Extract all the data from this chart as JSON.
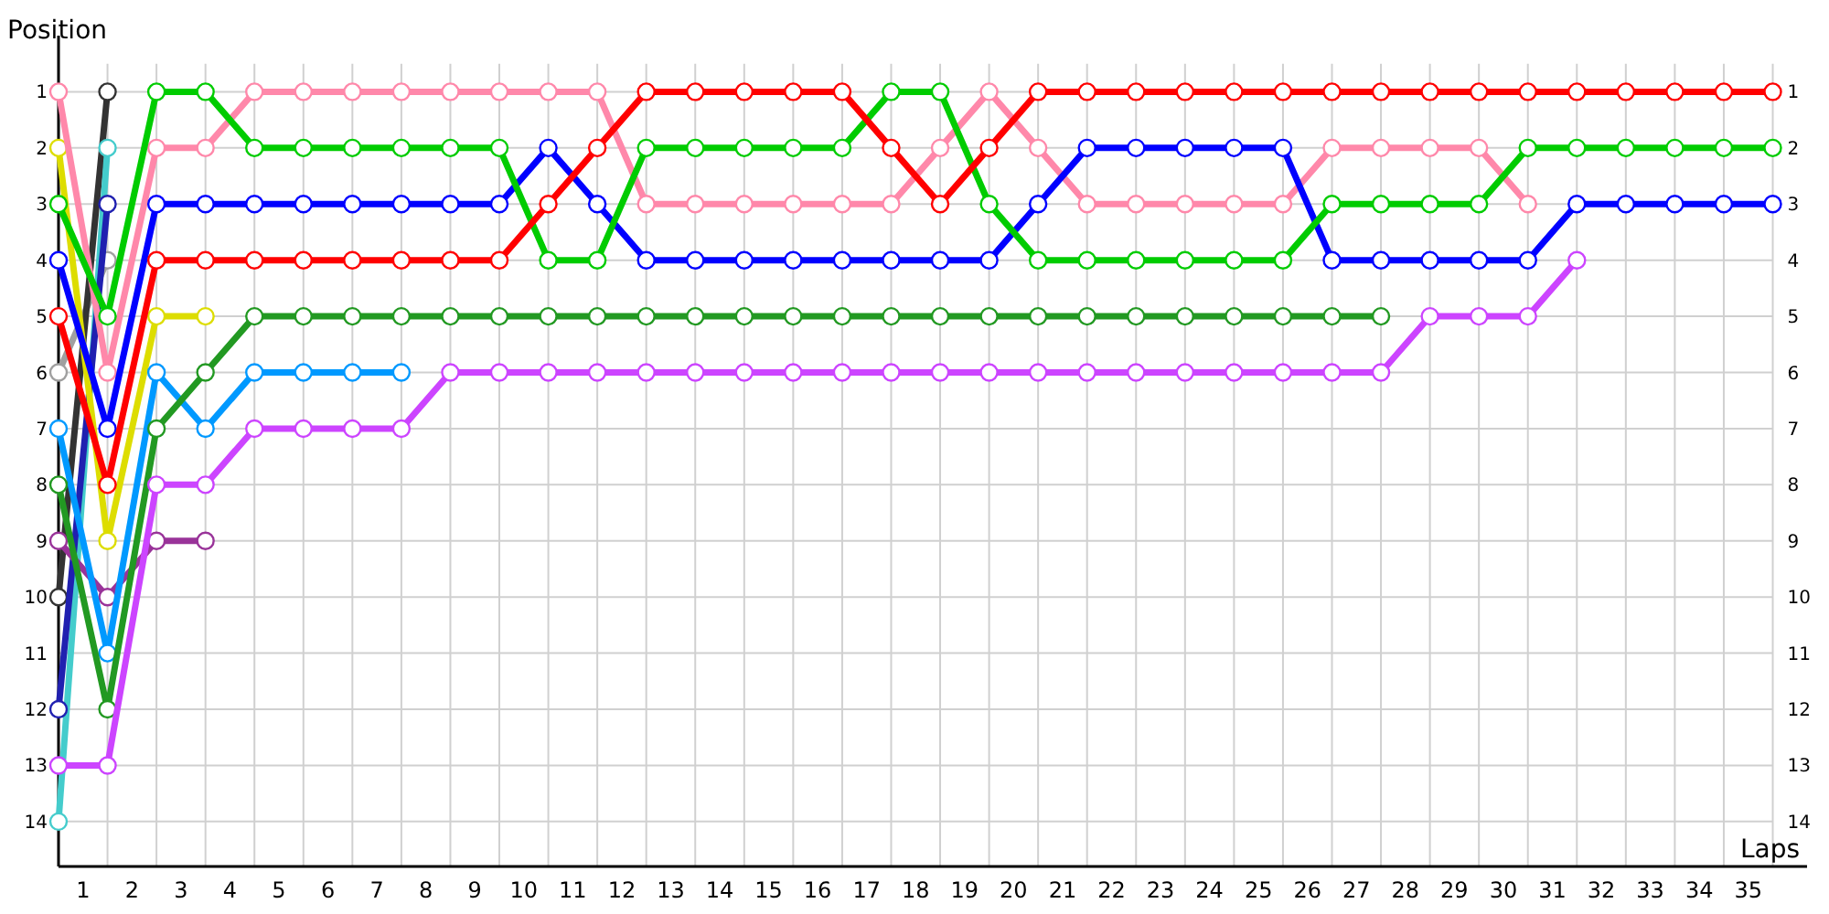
{
  "chart_data": {
    "type": "line",
    "xlabel": "Laps",
    "ylabel": "Position",
    "marker": "circle",
    "grid": true,
    "x": [
      0,
      1,
      2,
      3,
      4,
      5,
      6,
      7,
      8,
      9,
      10,
      11,
      12,
      13,
      14,
      15,
      16,
      17,
      18,
      19,
      20,
      21,
      22,
      23,
      24,
      25,
      26,
      27,
      28,
      29,
      30,
      31,
      32,
      33,
      34,
      35
    ],
    "xlim": [
      0,
      35.7
    ],
    "xticks": [
      {
        "value": 0.5,
        "label": "1"
      },
      {
        "value": 1.5,
        "label": "2"
      },
      {
        "value": 2.5,
        "label": "3"
      },
      {
        "value": 3.5,
        "label": "4"
      },
      {
        "value": 4.5,
        "label": "5"
      },
      {
        "value": 5.5,
        "label": "6"
      },
      {
        "value": 6.5,
        "label": "7"
      },
      {
        "value": 7.5,
        "label": "8"
      },
      {
        "value": 8.5,
        "label": "9"
      },
      {
        "value": 9.5,
        "label": "10"
      },
      {
        "value": 10.5,
        "label": "11"
      },
      {
        "value": 11.5,
        "label": "12"
      },
      {
        "value": 12.5,
        "label": "13"
      },
      {
        "value": 13.5,
        "label": "14"
      },
      {
        "value": 14.5,
        "label": "15"
      },
      {
        "value": 15.5,
        "label": "16"
      },
      {
        "value": 16.5,
        "label": "17"
      },
      {
        "value": 17.5,
        "label": "18"
      },
      {
        "value": 18.5,
        "label": "19"
      },
      {
        "value": 19.5,
        "label": "20"
      },
      {
        "value": 20.5,
        "label": "21"
      },
      {
        "value": 21.5,
        "label": "22"
      },
      {
        "value": 22.5,
        "label": "23"
      },
      {
        "value": 23.5,
        "label": "24"
      },
      {
        "value": 24.5,
        "label": "25"
      },
      {
        "value": 25.5,
        "label": "26"
      },
      {
        "value": 26.5,
        "label": "27"
      },
      {
        "value": 27.5,
        "label": "28"
      },
      {
        "value": 28.5,
        "label": "29"
      },
      {
        "value": 29.5,
        "label": "30"
      },
      {
        "value": 30.5,
        "label": "31"
      },
      {
        "value": 31.5,
        "label": "32"
      },
      {
        "value": 32.5,
        "label": "33"
      },
      {
        "value": 33.5,
        "label": "34"
      },
      {
        "value": 34.5,
        "label": "35"
      },
      {
        "value": 1,
        "label": null
      },
      {
        "value": 2,
        "label": null
      },
      {
        "value": 3,
        "label": null
      },
      {
        "value": 4,
        "label": null
      },
      {
        "value": 5,
        "label": null
      },
      {
        "value": 6,
        "label": null
      },
      {
        "value": 7,
        "label": null
      },
      {
        "value": 8,
        "label": null
      },
      {
        "value": 9,
        "label": null
      },
      {
        "value": 10,
        "label": null
      },
      {
        "value": 11,
        "label": null
      },
      {
        "value": 12,
        "label": null
      },
      {
        "value": 13,
        "label": null
      },
      {
        "value": 14,
        "label": null
      },
      {
        "value": 15,
        "label": null
      },
      {
        "value": 16,
        "label": null
      },
      {
        "value": 17,
        "label": null
      },
      {
        "value": 18,
        "label": null
      },
      {
        "value": 19,
        "label": null
      },
      {
        "value": 20,
        "label": null
      },
      {
        "value": 21,
        "label": null
      },
      {
        "value": 22,
        "label": null
      },
      {
        "value": 23,
        "label": null
      },
      {
        "value": 24,
        "label": null
      },
      {
        "value": 25,
        "label": null
      },
      {
        "value": 26,
        "label": null
      },
      {
        "value": 27,
        "label": null
      },
      {
        "value": 28,
        "label": null
      },
      {
        "value": 29,
        "label": null
      },
      {
        "value": 30,
        "label": null
      },
      {
        "value": 31,
        "label": null
      },
      {
        "value": 32,
        "label": null
      },
      {
        "value": 33,
        "label": null
      },
      {
        "value": 34,
        "label": null
      },
      {
        "value": 35,
        "label": null
      }
    ],
    "ylim": [
      14.8,
      0
    ],
    "yticks": [
      1,
      2,
      3,
      4,
      5,
      6,
      7,
      8,
      9,
      10,
      11,
      12,
      13,
      14
    ],
    "y2lim": [
      14.8,
      0
    ],
    "y2ticks": [
      1,
      2,
      3,
      4,
      5,
      6,
      7,
      8,
      9,
      10,
      11,
      12,
      13,
      14
    ],
    "series": [
      {
        "color": "#a0a0a0",
        "x": [
          0,
          1
        ],
        "values": [
          6,
          4
        ]
      },
      {
        "color": "#333333",
        "x": [
          0,
          1
        ],
        "values": [
          10,
          1
        ]
      },
      {
        "color": "#44cccc",
        "x": [
          0,
          1
        ],
        "values": [
          14,
          2
        ]
      },
      {
        "color": "#2020b0",
        "x": [
          0,
          1
        ],
        "values": [
          12,
          3
        ]
      },
      {
        "color": "#993399",
        "x": [
          0,
          1,
          2,
          3
        ],
        "values": [
          9,
          10,
          9,
          9
        ]
      },
      {
        "color": "#dddd00",
        "x": [
          0,
          1,
          2,
          3
        ],
        "values": [
          2,
          9,
          5,
          5
        ]
      },
      {
        "color": "#0099ff",
        "x": [
          0,
          1,
          2,
          3,
          4,
          5,
          6,
          7
        ],
        "values": [
          7,
          11,
          6,
          7,
          6,
          6,
          6,
          6
        ]
      },
      {
        "color": "#229922",
        "x": [
          0,
          1,
          2,
          3,
          4,
          5,
          6,
          7,
          8,
          9,
          10,
          11,
          12,
          13,
          14,
          15,
          16,
          17,
          18,
          19,
          20,
          21,
          22,
          23,
          24,
          25,
          26,
          27
        ],
        "values": [
          8,
          12,
          7,
          6,
          5,
          5,
          5,
          5,
          5,
          5,
          5,
          5,
          5,
          5,
          5,
          5,
          5,
          5,
          5,
          5,
          5,
          5,
          5,
          5,
          5,
          5,
          5,
          5
        ]
      },
      {
        "color": "#cc44ff",
        "x": [
          0,
          1,
          2,
          3,
          4,
          5,
          6,
          7,
          8,
          9,
          10,
          11,
          12,
          13,
          14,
          15,
          16,
          17,
          18,
          19,
          20,
          21,
          22,
          23,
          24,
          25,
          26,
          27,
          28,
          29,
          30,
          31
        ],
        "values": [
          13,
          13,
          8,
          8,
          7,
          7,
          7,
          7,
          6,
          6,
          6,
          6,
          6,
          6,
          6,
          6,
          6,
          6,
          6,
          6,
          6,
          6,
          6,
          6,
          6,
          6,
          6,
          6,
          5,
          5,
          5,
          4
        ]
      },
      {
        "color": "#ff88aa",
        "x": [
          0,
          1,
          2,
          3,
          4,
          5,
          6,
          7,
          8,
          9,
          10,
          11,
          12,
          13,
          14,
          15,
          16,
          17,
          18,
          19,
          20,
          21,
          22,
          23,
          24,
          25,
          26,
          27,
          28,
          29,
          30
        ],
        "values": [
          1,
          6,
          2,
          2,
          1,
          1,
          1,
          1,
          1,
          1,
          1,
          1,
          3,
          3,
          3,
          3,
          3,
          3,
          2,
          1,
          2,
          3,
          3,
          3,
          3,
          3,
          2,
          2,
          2,
          2,
          3
        ]
      },
      {
        "color": "#0000ff",
        "values": [
          4,
          7,
          3,
          3,
          3,
          3,
          3,
          3,
          3,
          3,
          2,
          3,
          4,
          4,
          4,
          4,
          4,
          4,
          4,
          4,
          3,
          2,
          2,
          2,
          2,
          2,
          4,
          4,
          4,
          4,
          4,
          3,
          3,
          3,
          3,
          3
        ]
      },
      {
        "color": "#00cc00",
        "values": [
          3,
          5,
          1,
          1,
          2,
          2,
          2,
          2,
          2,
          2,
          4,
          4,
          2,
          2,
          2,
          2,
          2,
          1,
          1,
          3,
          4,
          4,
          4,
          4,
          4,
          4,
          3,
          3,
          3,
          3,
          2,
          2,
          2,
          2,
          2,
          2
        ]
      },
      {
        "color": "#ff0000",
        "values": [
          5,
          8,
          4,
          4,
          4,
          4,
          4,
          4,
          4,
          4,
          3,
          2,
          1,
          1,
          1,
          1,
          1,
          2,
          3,
          2,
          1,
          1,
          1,
          1,
          1,
          1,
          1,
          1,
          1,
          1,
          1,
          1,
          1,
          1,
          1,
          1
        ]
      }
    ]
  }
}
